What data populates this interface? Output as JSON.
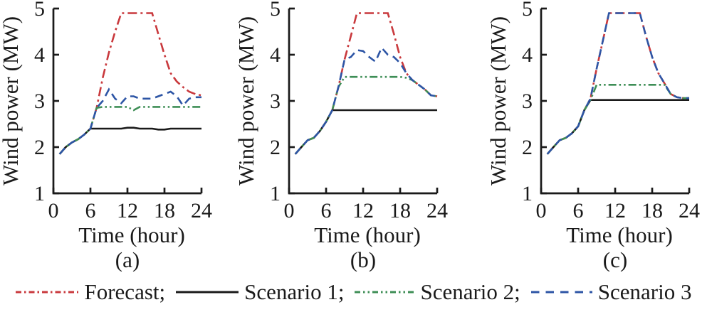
{
  "figure": {
    "ylabel": "Wind power (MW)",
    "xlabel": "Time (hour)",
    "x_ticks": [
      0,
      6,
      12,
      18,
      24
    ],
    "y_ticks": [
      1,
      2,
      3,
      4,
      5
    ],
    "xlim": [
      0,
      24
    ],
    "ylim": [
      1,
      5
    ]
  },
  "colors": {
    "forecast": "#c9393d",
    "scenario1": "#1a1a1a",
    "scenario2": "#3e8e56",
    "scenario3": "#2d55a5",
    "axis": "#1a1a1a"
  },
  "legend": [
    {
      "label": "Forecast;",
      "series": "forecast",
      "style": "dash-dot"
    },
    {
      "label": "Scenario 1;",
      "series": "scenario1",
      "style": "solid"
    },
    {
      "label": "Scenario 2;",
      "series": "scenario2",
      "style": "dash-dot-dot"
    },
    {
      "label": "Scenario 3",
      "series": "scenario3",
      "style": "dashed"
    }
  ],
  "chart_data": [
    {
      "type": "line",
      "label": "(a)",
      "xlabel": "Time (hour)",
      "ylabel": "Wind power (MW)",
      "xlim": [
        0,
        24
      ],
      "ylim": [
        1,
        5
      ],
      "x_ticks": [
        0,
        6,
        12,
        18,
        24
      ],
      "y_ticks": [
        1,
        2,
        3,
        4,
        5
      ],
      "x": [
        1,
        2,
        3,
        4,
        5,
        6,
        7,
        8,
        9,
        10,
        11,
        12,
        13,
        14,
        15,
        16,
        17,
        18,
        19,
        20,
        21,
        22,
        23,
        24
      ],
      "series": [
        {
          "name": "Forecast",
          "key": "forecast",
          "style": "dash-dot",
          "values": [
            1.85,
            2.0,
            2.1,
            2.17,
            2.27,
            2.4,
            2.85,
            3.5,
            4.05,
            4.5,
            4.9,
            4.9,
            4.9,
            4.9,
            4.9,
            4.9,
            4.45,
            4.0,
            3.6,
            3.42,
            3.3,
            3.2,
            3.15,
            3.12
          ]
        },
        {
          "name": "Scenario 1",
          "key": "scenario1",
          "style": "solid",
          "values": [
            1.85,
            2.0,
            2.1,
            2.17,
            2.27,
            2.4,
            2.4,
            2.4,
            2.4,
            2.4,
            2.4,
            2.42,
            2.42,
            2.4,
            2.4,
            2.4,
            2.38,
            2.38,
            2.4,
            2.4,
            2.4,
            2.4,
            2.4,
            2.4
          ]
        },
        {
          "name": "Scenario 2",
          "key": "scenario2",
          "style": "dash-dot-dot",
          "values": [
            1.85,
            2.0,
            2.1,
            2.17,
            2.27,
            2.4,
            2.85,
            2.87,
            2.87,
            2.87,
            2.87,
            2.87,
            2.8,
            2.87,
            2.87,
            2.87,
            2.87,
            2.87,
            2.87,
            2.87,
            2.87,
            2.87,
            2.87,
            2.87
          ]
        },
        {
          "name": "Scenario 3",
          "key": "scenario3",
          "style": "dashed",
          "values": [
            1.85,
            2.0,
            2.1,
            2.17,
            2.27,
            2.4,
            2.85,
            3.0,
            3.25,
            3.05,
            2.95,
            3.1,
            3.1,
            3.05,
            3.05,
            3.05,
            3.1,
            3.15,
            3.2,
            3.1,
            2.9,
            3.05,
            3.08,
            3.08
          ]
        }
      ]
    },
    {
      "type": "line",
      "label": "(b)",
      "xlabel": "Time (hour)",
      "ylabel": "Wind power (MW)",
      "xlim": [
        0,
        24
      ],
      "ylim": [
        1,
        5
      ],
      "x_ticks": [
        0,
        6,
        12,
        18,
        24
      ],
      "y_ticks": [
        1,
        2,
        3,
        4,
        5
      ],
      "x": [
        1,
        2,
        3,
        4,
        5,
        6,
        7,
        8,
        9,
        10,
        11,
        12,
        13,
        14,
        15,
        16,
        17,
        18,
        19,
        20,
        21,
        22,
        23,
        24
      ],
      "series": [
        {
          "name": "Forecast",
          "key": "forecast",
          "style": "dash-dot",
          "values": [
            1.85,
            2.0,
            2.15,
            2.2,
            2.35,
            2.55,
            2.8,
            3.3,
            3.9,
            4.4,
            4.9,
            4.9,
            4.9,
            4.9,
            4.9,
            4.9,
            4.45,
            3.95,
            3.6,
            3.45,
            3.35,
            3.25,
            3.12,
            3.1
          ]
        },
        {
          "name": "Scenario 1",
          "key": "scenario1",
          "style": "solid",
          "values": [
            1.85,
            2.0,
            2.15,
            2.2,
            2.35,
            2.55,
            2.8,
            2.8,
            2.8,
            2.8,
            2.8,
            2.8,
            2.8,
            2.8,
            2.8,
            2.8,
            2.8,
            2.8,
            2.8,
            2.8,
            2.8,
            2.8,
            2.8,
            2.8
          ]
        },
        {
          "name": "Scenario 2",
          "key": "scenario2",
          "style": "dash-dot-dot",
          "values": [
            1.85,
            2.0,
            2.15,
            2.2,
            2.35,
            2.55,
            2.8,
            3.3,
            3.52,
            3.52,
            3.52,
            3.52,
            3.52,
            3.52,
            3.52,
            3.52,
            3.52,
            3.52,
            3.5,
            3.45,
            3.35,
            3.25,
            3.12,
            3.1
          ]
        },
        {
          "name": "Scenario 3",
          "key": "scenario3",
          "style": "dashed",
          "values": [
            1.85,
            2.0,
            2.15,
            2.2,
            2.35,
            2.55,
            2.8,
            3.3,
            3.9,
            3.95,
            4.1,
            4.08,
            3.95,
            3.85,
            4.15,
            4.0,
            3.95,
            3.82,
            3.6,
            3.45,
            3.35,
            3.25,
            3.12,
            3.1
          ]
        }
      ]
    },
    {
      "type": "line",
      "label": "(c)",
      "xlabel": "Time (hour)",
      "ylabel": "Wind power (MW)",
      "xlim": [
        0,
        24
      ],
      "ylim": [
        1,
        5
      ],
      "x_ticks": [
        0,
        6,
        12,
        18,
        24
      ],
      "y_ticks": [
        1,
        2,
        3,
        4,
        5
      ],
      "x": [
        1,
        2,
        3,
        4,
        5,
        6,
        7,
        8,
        9,
        10,
        11,
        12,
        13,
        14,
        15,
        16,
        17,
        18,
        19,
        20,
        21,
        22,
        23,
        24
      ],
      "series": [
        {
          "name": "Forecast",
          "key": "forecast",
          "style": "dash-dot",
          "values": [
            1.85,
            2.0,
            2.15,
            2.2,
            2.3,
            2.45,
            2.8,
            3.05,
            3.7,
            4.3,
            4.9,
            4.9,
            4.9,
            4.9,
            4.9,
            4.9,
            4.4,
            3.95,
            3.6,
            3.38,
            3.15,
            3.08,
            3.06,
            3.06
          ]
        },
        {
          "name": "Scenario 1",
          "key": "scenario1",
          "style": "solid",
          "values": [
            1.85,
            2.0,
            2.15,
            2.2,
            2.3,
            2.45,
            2.8,
            3.02,
            3.02,
            3.02,
            3.02,
            3.02,
            3.02,
            3.02,
            3.02,
            3.02,
            3.02,
            3.02,
            3.02,
            3.02,
            3.02,
            3.02,
            3.02,
            3.02
          ]
        },
        {
          "name": "Scenario 2",
          "key": "scenario2",
          "style": "dash-dot-dot",
          "values": [
            1.85,
            2.0,
            2.15,
            2.2,
            2.3,
            2.45,
            2.8,
            3.02,
            3.35,
            3.35,
            3.35,
            3.35,
            3.35,
            3.35,
            3.35,
            3.35,
            3.35,
            3.35,
            3.35,
            3.35,
            3.15,
            3.08,
            3.06,
            3.06
          ]
        },
        {
          "name": "Scenario 3",
          "key": "scenario3",
          "style": "dashed",
          "values": [
            1.85,
            2.0,
            2.15,
            2.2,
            2.3,
            2.45,
            2.8,
            3.05,
            3.7,
            4.3,
            4.9,
            4.9,
            4.9,
            4.9,
            4.9,
            4.9,
            4.4,
            3.95,
            3.6,
            3.38,
            3.15,
            3.08,
            3.06,
            3.06
          ]
        }
      ]
    }
  ]
}
